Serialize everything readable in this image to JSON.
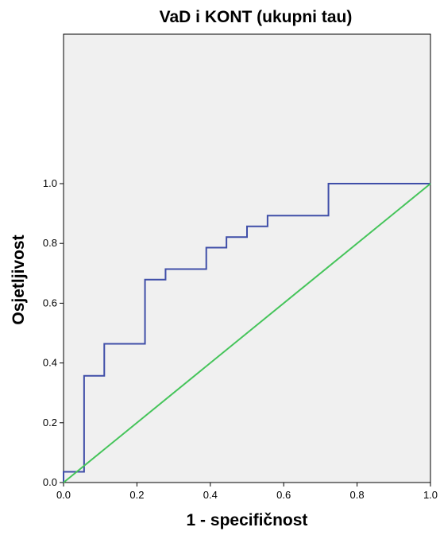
{
  "chart_data": {
    "type": "line",
    "title": "VaD i KONT (ukupni tau)",
    "xlabel": "1 - specifičnost",
    "ylabel": "Osjetljivost",
    "xlim": [
      0,
      1
    ],
    "ylim": [
      0,
      1
    ],
    "y_plot_max": 1.5,
    "x_ticks": [
      "0.0",
      "0.2",
      "0.4",
      "0.6",
      "0.8",
      "1.0"
    ],
    "y_ticks": [
      "0.0",
      "0.2",
      "0.4",
      "0.6",
      "0.8",
      "1.0"
    ],
    "grid": false,
    "background_color": "#f0f0f0",
    "series": [
      {
        "color": "#3f4ea8",
        "step": true,
        "x": [
          0.0,
          0.0,
          0.056,
          0.056,
          0.111,
          0.111,
          0.222,
          0.222,
          0.278,
          0.278,
          0.389,
          0.389,
          0.444,
          0.444,
          0.5,
          0.5,
          0.556,
          0.556,
          0.722,
          0.722,
          1.0
        ],
        "y": [
          0.0,
          0.036,
          0.036,
          0.357,
          0.357,
          0.464,
          0.464,
          0.679,
          0.679,
          0.714,
          0.714,
          0.786,
          0.786,
          0.821,
          0.821,
          0.857,
          0.857,
          0.893,
          0.893,
          1.0,
          1.0
        ]
      },
      {
        "color": "#45c45a",
        "step": false,
        "x": [
          0.0,
          1.0
        ],
        "y": [
          0.0,
          1.0
        ]
      }
    ]
  }
}
